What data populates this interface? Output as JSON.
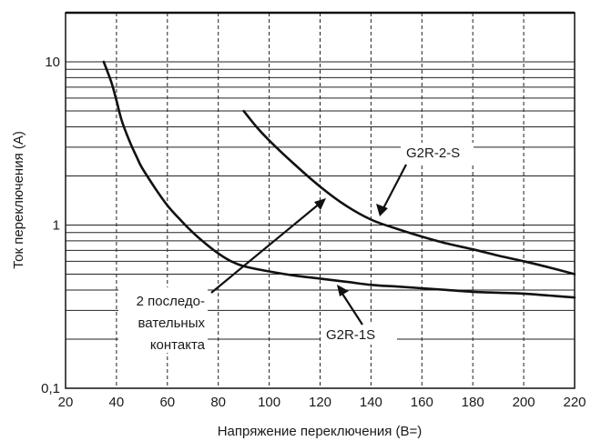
{
  "chart_data": {
    "type": "line",
    "title": "",
    "xlabel": "Напряжение переключения (В=)",
    "ylabel": "Ток переключения (А)",
    "x_scale": "linear",
    "y_scale": "log",
    "xlim": [
      20,
      220
    ],
    "ylim": [
      0.1,
      20
    ],
    "grid": true,
    "x_ticks": [
      20,
      40,
      60,
      80,
      100,
      120,
      140,
      160,
      180,
      200,
      220
    ],
    "x_tick_labels": [
      "20",
      "40",
      "60",
      "80",
      "100",
      "120",
      "140",
      "160",
      "180",
      "200",
      "220"
    ],
    "y_tick_values": [
      10,
      1,
      0.1
    ],
    "y_tick_labels": [
      "10",
      "1",
      "0,1"
    ],
    "series": [
      {
        "name": "G2R-1S",
        "x": [
          35,
          38,
          40,
          42,
          45,
          48,
          50,
          55,
          60,
          65,
          70,
          75,
          80,
          85,
          90,
          100,
          110,
          120,
          130,
          140,
          150,
          160,
          170,
          180,
          190,
          200,
          210,
          220
        ],
        "y": [
          10,
          7.5,
          5.8,
          4.4,
          3.3,
          2.6,
          2.25,
          1.7,
          1.32,
          1.08,
          0.9,
          0.77,
          0.67,
          0.6,
          0.56,
          0.52,
          0.49,
          0.47,
          0.45,
          0.43,
          0.42,
          0.41,
          0.4,
          0.39,
          0.385,
          0.38,
          0.37,
          0.36
        ]
      },
      {
        "name": "G2R-2-S",
        "x": [
          90,
          95,
          100,
          110,
          120,
          130,
          140,
          150,
          160,
          170,
          180,
          190,
          200,
          210,
          220
        ],
        "y": [
          5.0,
          4.0,
          3.3,
          2.35,
          1.72,
          1.32,
          1.08,
          0.95,
          0.85,
          0.77,
          0.71,
          0.65,
          0.6,
          0.55,
          0.5
        ]
      }
    ],
    "annotations": [
      {
        "text": "G2R-2-S",
        "points_to_series": "G2R-2-S",
        "point": [
          143,
          1.12
        ]
      },
      {
        "text": "2 последо-\nвательных\nконтакта",
        "points_to_series": "G2R-2-S",
        "point": [
          122,
          1.55
        ]
      },
      {
        "text": "G2R-1S",
        "points_to_series": "G2R-1S",
        "point": [
          125,
          0.45
        ]
      }
    ]
  },
  "labels": {
    "g2r2s": "G2R-2-S",
    "g2r1s": "G2R-1S",
    "series_contacts_line1": "2 последо-",
    "series_contacts_line2": "вательных",
    "series_contacts_line3": "контакта"
  },
  "colors": {
    "line": "#111111",
    "grid": "#222222",
    "background": "#ffffff"
  }
}
